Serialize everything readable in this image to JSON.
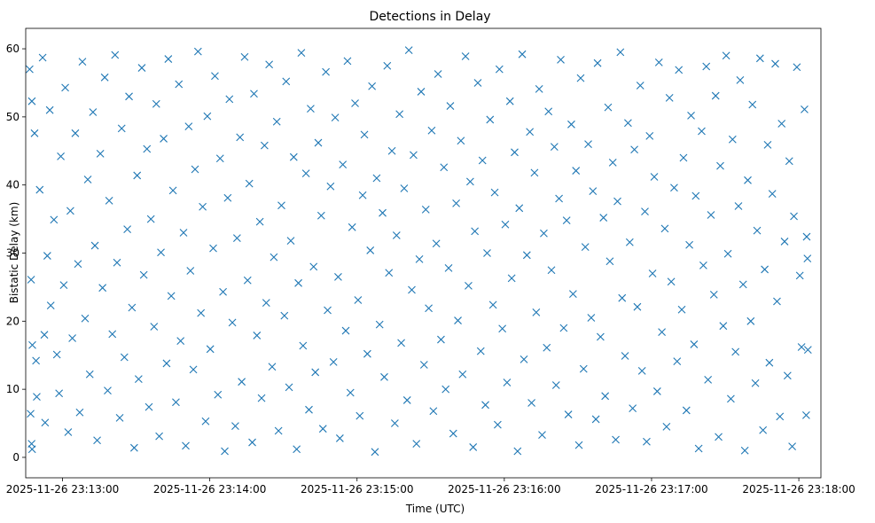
{
  "chart_data": {
    "type": "scatter",
    "title": "Detections in Delay",
    "xlabel": "Time (UTC)",
    "ylabel": "Bistatic Delay (km)",
    "marker": "x",
    "color": "#1f77b4",
    "x_unit": "seconds after 2025-11-26 23:13:00 UTC",
    "xlim": [
      -15,
      309
    ],
    "ylim": [
      -3,
      63
    ],
    "xticks": [
      {
        "value": 0,
        "label": "2025-11-26 23:13:00"
      },
      {
        "value": 60,
        "label": "2025-11-26 23:14:00"
      },
      {
        "value": 120,
        "label": "2025-11-26 23:15:00"
      },
      {
        "value": 180,
        "label": "2025-11-26 23:16:00"
      },
      {
        "value": 240,
        "label": "2025-11-26 23:17:00"
      },
      {
        "value": 300,
        "label": "2025-11-26 23:18:00"
      }
    ],
    "yticks": [
      {
        "value": 0,
        "label": "0"
      },
      {
        "value": 10,
        "label": "10"
      },
      {
        "value": 20,
        "label": "20"
      },
      {
        "value": 30,
        "label": "30"
      },
      {
        "value": 40,
        "label": "40"
      },
      {
        "value": 50,
        "label": "50"
      },
      {
        "value": 60,
        "label": "60"
      }
    ],
    "points": [
      [
        -13.4,
        57.0
      ],
      [
        -12.5,
        52.3
      ],
      [
        -11.4,
        47.6
      ],
      [
        -12.8,
        26.1
      ],
      [
        -12.3,
        16.5
      ],
      [
        -13.0,
        6.4
      ],
      [
        -12.6,
        2.0
      ],
      [
        -12.4,
        1.2
      ],
      [
        -10.8,
        14.2
      ],
      [
        -10.5,
        8.9
      ],
      [
        -9.3,
        39.3
      ],
      [
        -8.1,
        58.7
      ],
      [
        -7.4,
        18.0
      ],
      [
        -7.1,
        5.1
      ],
      [
        -6.2,
        29.6
      ],
      [
        -5.2,
        51.0
      ],
      [
        -4.8,
        22.3
      ],
      [
        -3.5,
        34.9
      ],
      [
        -2.3,
        15.1
      ],
      [
        -1.4,
        9.4
      ],
      [
        -0.7,
        44.2
      ],
      [
        0.5,
        25.3
      ],
      [
        1.1,
        54.3
      ],
      [
        2.3,
        3.7
      ],
      [
        3.2,
        36.2
      ],
      [
        4.0,
        17.5
      ],
      [
        5.2,
        47.6
      ],
      [
        6.3,
        28.4
      ],
      [
        7.0,
        6.6
      ],
      [
        8.1,
        58.1
      ],
      [
        9.2,
        20.4
      ],
      [
        10.3,
        40.8
      ],
      [
        11.1,
        12.2
      ],
      [
        12.4,
        50.7
      ],
      [
        13.2,
        31.1
      ],
      [
        14.1,
        2.5
      ],
      [
        15.4,
        44.6
      ],
      [
        16.3,
        24.9
      ],
      [
        17.2,
        55.8
      ],
      [
        18.4,
        9.8
      ],
      [
        19.0,
        37.7
      ],
      [
        20.3,
        18.1
      ],
      [
        21.4,
        59.1
      ],
      [
        22.2,
        28.6
      ],
      [
        23.3,
        5.8
      ],
      [
        24.1,
        48.3
      ],
      [
        25.2,
        14.7
      ],
      [
        26.4,
        33.5
      ],
      [
        27.1,
        53.0
      ],
      [
        28.3,
        22.0
      ],
      [
        29.2,
        1.4
      ],
      [
        30.4,
        41.4
      ],
      [
        31.0,
        11.5
      ],
      [
        32.3,
        57.2
      ],
      [
        33.1,
        26.8
      ],
      [
        34.4,
        45.3
      ],
      [
        35.2,
        7.4
      ],
      [
        36.0,
        35.0
      ],
      [
        37.3,
        19.2
      ],
      [
        38.2,
        51.9
      ],
      [
        39.4,
        3.1
      ],
      [
        40.1,
        30.1
      ],
      [
        41.2,
        46.8
      ],
      [
        42.4,
        13.8
      ],
      [
        43.1,
        58.5
      ],
      [
        44.3,
        23.7
      ],
      [
        45.0,
        39.2
      ],
      [
        46.2,
        8.1
      ],
      [
        47.4,
        54.8
      ],
      [
        48.1,
        17.1
      ],
      [
        49.3,
        33.0
      ],
      [
        50.2,
        1.7
      ],
      [
        51.4,
        48.6
      ],
      [
        52.1,
        27.4
      ],
      [
        53.3,
        12.9
      ],
      [
        54.0,
        42.3
      ],
      [
        55.2,
        59.6
      ],
      [
        56.4,
        21.2
      ],
      [
        57.1,
        36.8
      ],
      [
        58.3,
        5.3
      ],
      [
        59.0,
        50.1
      ],
      [
        60.2,
        15.9
      ],
      [
        61.4,
        30.7
      ],
      [
        62.1,
        56.0
      ],
      [
        63.3,
        9.2
      ],
      [
        64.2,
        43.9
      ],
      [
        65.4,
        24.3
      ],
      [
        66.1,
        0.9
      ],
      [
        67.3,
        38.1
      ],
      [
        68.0,
        52.6
      ],
      [
        69.2,
        19.8
      ],
      [
        70.4,
        4.6
      ],
      [
        71.1,
        32.2
      ],
      [
        72.3,
        47.0
      ],
      [
        73.0,
        11.1
      ],
      [
        74.2,
        58.8
      ],
      [
        75.4,
        26.0
      ],
      [
        76.1,
        40.2
      ],
      [
        77.3,
        2.2
      ],
      [
        78.0,
        53.4
      ],
      [
        79.2,
        17.9
      ],
      [
        80.4,
        34.6
      ],
      [
        81.1,
        8.7
      ],
      [
        82.3,
        45.8
      ],
      [
        83.0,
        22.7
      ],
      [
        84.2,
        57.7
      ],
      [
        85.4,
        13.3
      ],
      [
        86.1,
        29.4
      ],
      [
        87.3,
        49.3
      ],
      [
        88.0,
        3.9
      ],
      [
        89.2,
        37.0
      ],
      [
        90.4,
        20.8
      ],
      [
        91.1,
        55.2
      ],
      [
        92.3,
        10.3
      ],
      [
        93.0,
        31.8
      ],
      [
        94.2,
        44.1
      ],
      [
        95.4,
        1.2
      ],
      [
        96.1,
        25.6
      ],
      [
        97.3,
        59.4
      ],
      [
        98.0,
        16.4
      ],
      [
        99.2,
        41.7
      ],
      [
        100.4,
        7.0
      ],
      [
        101.1,
        51.2
      ],
      [
        102.3,
        28.0
      ],
      [
        103.0,
        12.5
      ],
      [
        104.2,
        46.2
      ],
      [
        105.4,
        35.5
      ],
      [
        106.1,
        4.2
      ],
      [
        107.3,
        56.6
      ],
      [
        108.0,
        21.6
      ],
      [
        109.2,
        39.8
      ],
      [
        110.4,
        14.0
      ],
      [
        111.1,
        49.9
      ],
      [
        112.3,
        26.5
      ],
      [
        113.0,
        2.8
      ],
      [
        114.2,
        43.0
      ],
      [
        115.4,
        18.6
      ],
      [
        116.1,
        58.2
      ],
      [
        117.3,
        9.5
      ],
      [
        118.0,
        33.8
      ],
      [
        119.2,
        52.0
      ],
      [
        120.4,
        23.1
      ],
      [
        121.1,
        6.1
      ],
      [
        122.3,
        38.5
      ],
      [
        123.0,
        47.4
      ],
      [
        124.2,
        15.2
      ],
      [
        125.4,
        30.4
      ],
      [
        126.1,
        54.5
      ],
      [
        127.3,
        0.8
      ],
      [
        128.0,
        41.0
      ],
      [
        129.2,
        19.5
      ],
      [
        130.4,
        35.9
      ],
      [
        131.1,
        11.8
      ],
      [
        132.3,
        57.5
      ],
      [
        133.0,
        27.1
      ],
      [
        134.2,
        45.0
      ],
      [
        135.4,
        5.0
      ],
      [
        136.1,
        32.6
      ],
      [
        137.3,
        50.4
      ],
      [
        138.0,
        16.8
      ],
      [
        139.2,
        39.5
      ],
      [
        140.4,
        8.4
      ],
      [
        141.1,
        59.8
      ],
      [
        142.3,
        24.6
      ],
      [
        143.0,
        44.4
      ],
      [
        144.2,
        2.0
      ],
      [
        145.4,
        29.1
      ],
      [
        146.1,
        53.7
      ],
      [
        147.3,
        13.6
      ],
      [
        148.0,
        36.4
      ],
      [
        149.2,
        21.9
      ],
      [
        150.4,
        48.0
      ],
      [
        151.1,
        6.8
      ],
      [
        152.3,
        31.4
      ],
      [
        153.0,
        56.3
      ],
      [
        154.2,
        17.3
      ],
      [
        155.4,
        42.6
      ],
      [
        156.1,
        10.0
      ],
      [
        157.3,
        27.8
      ],
      [
        158.0,
        51.6
      ],
      [
        159.2,
        3.5
      ],
      [
        160.4,
        37.3
      ],
      [
        161.1,
        20.1
      ],
      [
        162.3,
        46.5
      ],
      [
        163.0,
        12.2
      ],
      [
        164.2,
        58.9
      ],
      [
        165.4,
        25.2
      ],
      [
        166.1,
        40.5
      ],
      [
        167.3,
        1.5
      ],
      [
        168.0,
        33.2
      ],
      [
        169.2,
        55.0
      ],
      [
        170.4,
        15.6
      ],
      [
        171.1,
        43.6
      ],
      [
        172.3,
        7.7
      ],
      [
        173.0,
        30.0
      ],
      [
        174.2,
        49.6
      ],
      [
        175.4,
        22.4
      ],
      [
        176.1,
        38.9
      ],
      [
        177.3,
        4.8
      ],
      [
        178.0,
        57.0
      ],
      [
        179.2,
        18.9
      ],
      [
        180.4,
        34.2
      ],
      [
        181.1,
        11.0
      ],
      [
        182.3,
        52.3
      ],
      [
        183.0,
        26.3
      ],
      [
        184.2,
        44.8
      ],
      [
        185.4,
        0.9
      ],
      [
        186.1,
        36.6
      ],
      [
        187.3,
        59.2
      ],
      [
        188.0,
        14.4
      ],
      [
        189.2,
        29.7
      ],
      [
        190.4,
        47.8
      ],
      [
        191.1,
        8.0
      ],
      [
        192.3,
        41.8
      ],
      [
        193.0,
        21.3
      ],
      [
        194.2,
        54.1
      ],
      [
        195.4,
        3.3
      ],
      [
        196.1,
        32.9
      ],
      [
        197.3,
        16.1
      ],
      [
        198.0,
        50.8
      ],
      [
        199.2,
        27.5
      ],
      [
        200.4,
        45.6
      ],
      [
        201.1,
        10.6
      ],
      [
        202.3,
        38.0
      ],
      [
        203.0,
        58.4
      ],
      [
        204.2,
        19.0
      ],
      [
        205.4,
        34.8
      ],
      [
        206.1,
        6.3
      ],
      [
        207.3,
        48.9
      ],
      [
        208.0,
        24.0
      ],
      [
        209.2,
        42.1
      ],
      [
        210.4,
        1.8
      ],
      [
        211.1,
        55.7
      ],
      [
        212.3,
        13.0
      ],
      [
        213.0,
        30.9
      ],
      [
        214.2,
        46.0
      ],
      [
        215.4,
        20.5
      ],
      [
        216.1,
        39.1
      ],
      [
        217.3,
        5.6
      ],
      [
        218.0,
        57.9
      ],
      [
        219.2,
        17.7
      ],
      [
        220.4,
        35.2
      ],
      [
        221.1,
        9.0
      ],
      [
        222.3,
        51.4
      ],
      [
        223.0,
        28.8
      ],
      [
        224.2,
        43.3
      ],
      [
        225.4,
        2.6
      ],
      [
        226.1,
        37.6
      ],
      [
        227.3,
        59.5
      ],
      [
        228.0,
        23.4
      ],
      [
        229.2,
        14.9
      ],
      [
        230.4,
        49.1
      ],
      [
        231.1,
        31.6
      ],
      [
        232.3,
        7.2
      ],
      [
        233.0,
        45.2
      ],
      [
        234.2,
        22.1
      ],
      [
        235.4,
        54.6
      ],
      [
        236.1,
        12.7
      ],
      [
        237.3,
        36.1
      ],
      [
        238.0,
        2.3
      ],
      [
        239.2,
        47.2
      ],
      [
        240.4,
        27.0
      ],
      [
        241.1,
        41.2
      ],
      [
        242.3,
        9.7
      ],
      [
        243.0,
        58.0
      ],
      [
        244.2,
        18.4
      ],
      [
        245.4,
        33.6
      ],
      [
        246.1,
        4.5
      ],
      [
        247.3,
        52.8
      ],
      [
        248.0,
        25.8
      ],
      [
        249.2,
        39.6
      ],
      [
        250.4,
        14.1
      ],
      [
        251.1,
        56.9
      ],
      [
        252.3,
        21.7
      ],
      [
        253.0,
        44.0
      ],
      [
        254.2,
        6.9
      ],
      [
        255.4,
        31.2
      ],
      [
        256.1,
        50.2
      ],
      [
        257.3,
        16.6
      ],
      [
        258.0,
        38.4
      ],
      [
        259.2,
        1.3
      ],
      [
        260.4,
        47.9
      ],
      [
        261.1,
        28.2
      ],
      [
        262.3,
        57.4
      ],
      [
        263.0,
        11.4
      ],
      [
        264.2,
        35.6
      ],
      [
        265.4,
        23.9
      ],
      [
        266.1,
        53.1
      ],
      [
        267.3,
        3.0
      ],
      [
        268.0,
        42.8
      ],
      [
        269.2,
        19.3
      ],
      [
        270.4,
        59.0
      ],
      [
        271.1,
        29.9
      ],
      [
        272.3,
        8.6
      ],
      [
        273.0,
        46.7
      ],
      [
        274.2,
        15.5
      ],
      [
        275.4,
        36.9
      ],
      [
        276.1,
        55.4
      ],
      [
        277.3,
        25.4
      ],
      [
        278.0,
        1.0
      ],
      [
        279.2,
        40.7
      ],
      [
        280.4,
        20.0
      ],
      [
        281.1,
        51.8
      ],
      [
        282.3,
        10.9
      ],
      [
        283.0,
        33.3
      ],
      [
        284.2,
        58.6
      ],
      [
        285.4,
        4.0
      ],
      [
        286.1,
        27.6
      ],
      [
        287.3,
        45.9
      ],
      [
        288.0,
        13.9
      ],
      [
        289.2,
        38.7
      ],
      [
        290.4,
        57.8
      ],
      [
        291.1,
        22.9
      ],
      [
        292.3,
        6.0
      ],
      [
        293.0,
        49.0
      ],
      [
        294.2,
        31.7
      ],
      [
        295.4,
        12.0
      ],
      [
        296.1,
        43.5
      ],
      [
        297.3,
        1.6
      ],
      [
        298.0,
        35.4
      ],
      [
        299.2,
        57.3
      ],
      [
        300.4,
        26.7
      ],
      [
        301.1,
        16.2
      ],
      [
        302.3,
        51.1
      ],
      [
        303.0,
        6.2
      ],
      [
        303.5,
        29.2
      ],
      [
        303.7,
        15.8
      ],
      [
        303.2,
        32.4
      ]
    ]
  }
}
